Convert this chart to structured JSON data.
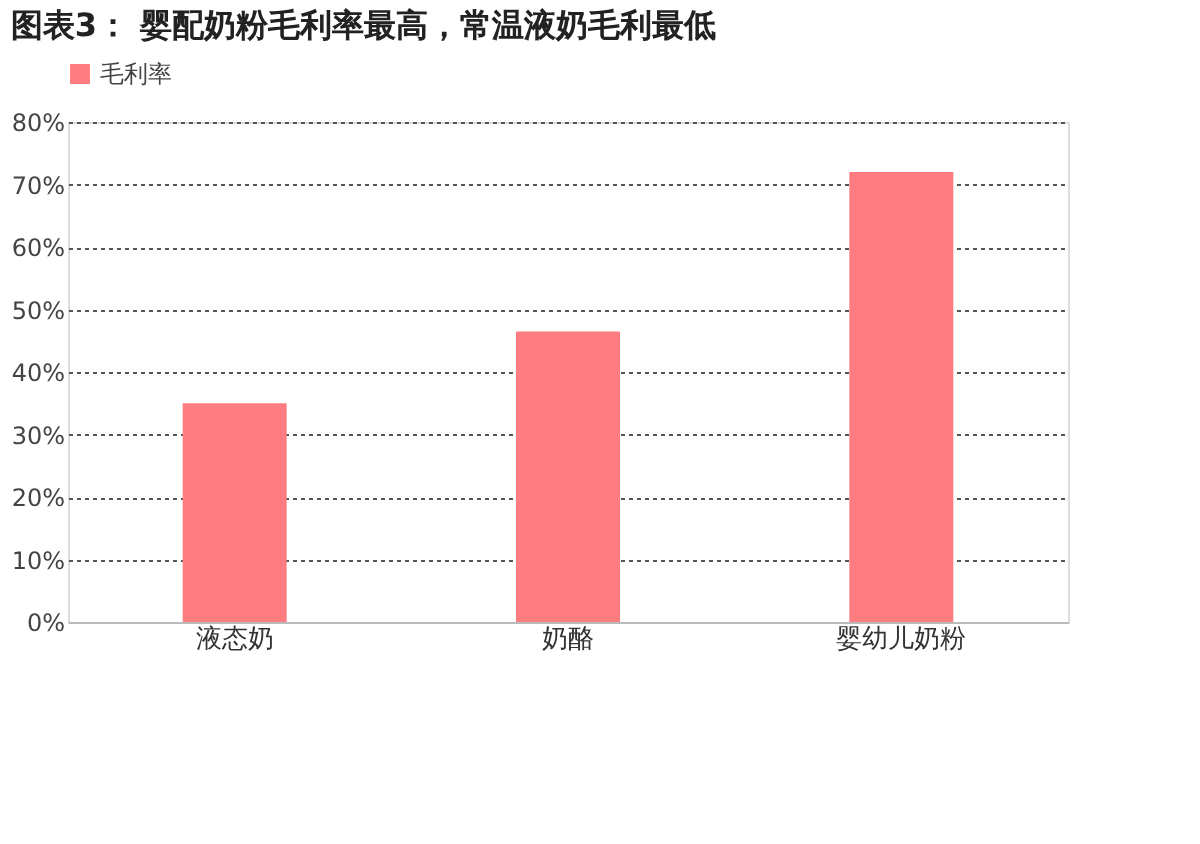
{
  "chart_data": {
    "type": "bar",
    "title": "图表3：  婴配奶粉毛利率最高，常温液奶毛利最低",
    "categories": [
      "液态奶",
      "奶酪",
      "婴幼儿奶粉"
    ],
    "series": [
      {
        "name": "毛利率",
        "color": "#ff7c80",
        "values": [
          35,
          46.5,
          72
        ]
      }
    ],
    "ylim": [
      0,
      80
    ],
    "yticks": [
      {
        "value": 0,
        "label": "0%"
      },
      {
        "value": 10,
        "label": "10%"
      },
      {
        "value": 20,
        "label": "20%"
      },
      {
        "value": 30,
        "label": "30%"
      },
      {
        "value": 40,
        "label": "40%"
      },
      {
        "value": 50,
        "label": "50%"
      },
      {
        "value": 60,
        "label": "60%"
      },
      {
        "value": 70,
        "label": "70%"
      },
      {
        "value": 80,
        "label": "80%"
      }
    ],
    "grid": "y",
    "legend": "top"
  }
}
